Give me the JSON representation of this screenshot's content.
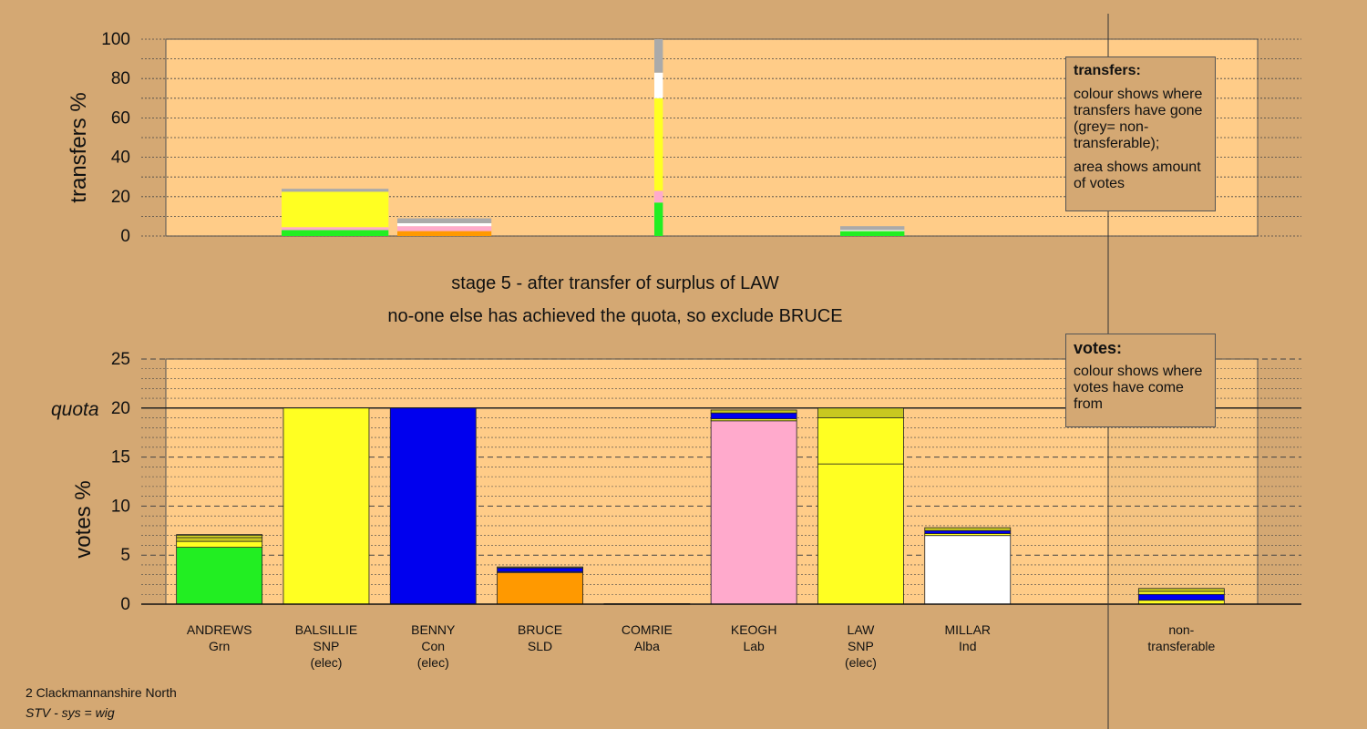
{
  "headings": {
    "line1": "stage 5 - after transfer of surplus of LAW",
    "line2": "no-one else has achieved the quota, so exclude BRUCE"
  },
  "legend_transfers": {
    "title": "transfers:",
    "text1": "colour shows where transfers have gone (grey= non-transferable);",
    "text2": "area shows amount of votes"
  },
  "legend_votes": {
    "title": "votes:",
    "text1": "colour shows where votes have come from"
  },
  "footer": {
    "ward": "2 Clackmannanshire North",
    "system": "STV - sys = wig"
  },
  "chart_data": [
    {
      "type": "bar",
      "ylabel": "transfers %",
      "ylim": [
        0,
        100
      ],
      "yticks": [
        0,
        20,
        40,
        60,
        80,
        100
      ],
      "grid": true,
      "stack_order": [
        "green",
        "pink",
        "yellow",
        "white",
        "grey"
      ],
      "segment_colors": {
        "green": "#22ee22",
        "pink": "#ffaacc",
        "yellow": "#ffff22",
        "white": "#ffffff",
        "grey": "#aaaaaa",
        "orange": "#ff9900"
      },
      "columns": [
        {
          "candidate": "BALSILLIE",
          "width_frac": 1.0,
          "segments": [
            {
              "color": "green",
              "value": 3
            },
            {
              "color": "pink",
              "value": 1.5
            },
            {
              "color": "yellow",
              "value": 18
            },
            {
              "color": "grey",
              "value": 1.5
            }
          ]
        },
        {
          "candidate": "BENNY",
          "width_frac": 0.88,
          "segments": [
            {
              "color": "orange",
              "value": 2.5
            },
            {
              "color": "pink",
              "value": 2.5
            },
            {
              "color": "white",
              "value": 1.5
            },
            {
              "color": "grey",
              "value": 2.5
            }
          ]
        },
        {
          "candidate": "LAW",
          "width_frac": 0.08,
          "segments": [
            {
              "color": "green",
              "value": 17
            },
            {
              "color": "pink",
              "value": 6
            },
            {
              "color": "yellow",
              "value": 47
            },
            {
              "color": "white",
              "value": 13
            },
            {
              "color": "grey",
              "value": 17
            }
          ]
        },
        {
          "candidate": "MILLAR",
          "width_frac": 0.6,
          "segments": [
            {
              "color": "green",
              "value": 2.5
            },
            {
              "color": "white",
              "value": 0.5
            },
            {
              "color": "grey",
              "value": 2
            }
          ]
        }
      ]
    },
    {
      "type": "bar",
      "ylabel": "votes %",
      "ylim": [
        0,
        25
      ],
      "yticks": [
        0,
        5,
        10,
        15,
        20,
        25
      ],
      "quota": 20,
      "quota_label": "quota",
      "grid": true,
      "categories": [
        {
          "name": "ANDREWS",
          "party": "Grn",
          "note": ""
        },
        {
          "name": "BALSILLIE",
          "party": "SNP",
          "note": "(elec)"
        },
        {
          "name": "BENNY",
          "party": "Con",
          "note": "(elec)"
        },
        {
          "name": "BRUCE",
          "party": "SLD",
          "note": ""
        },
        {
          "name": "COMRIE",
          "party": "Alba",
          "note": ""
        },
        {
          "name": "KEOGH",
          "party": "Lab",
          "note": ""
        },
        {
          "name": "LAW",
          "party": "SNP",
          "note": "(elec)"
        },
        {
          "name": "MILLAR",
          "party": "Ind",
          "note": ""
        },
        {
          "name": "",
          "party": "",
          "note": ""
        },
        {
          "name": "non-",
          "party": "transferable",
          "note": ""
        }
      ],
      "stacks": [
        [
          {
            "color": "#22ee22",
            "value": 5.8
          },
          {
            "color": "#ffff22",
            "value": 0.6
          },
          {
            "color": "#c8c820",
            "value": 0.4
          },
          {
            "color": "#ffff22",
            "value": 0.2
          },
          {
            "color": "#c8c820",
            "value": 0.1
          }
        ],
        [
          {
            "color": "#ffff22",
            "value": 20
          }
        ],
        [
          {
            "color": "#0000ee",
            "value": 20
          }
        ],
        [
          {
            "color": "#ff9900",
            "value": 3.2
          },
          {
            "color": "#ffaacc",
            "value": 0.1
          },
          {
            "color": "#0000ee",
            "value": 0.4
          },
          {
            "color": "#c8c820",
            "value": 0.1
          }
        ],
        [
          {
            "color": "#22ee22",
            "value": 0.05
          }
        ],
        [
          {
            "color": "#ffaacc",
            "value": 18.7
          },
          {
            "color": "#ffff22",
            "value": 0.2
          },
          {
            "color": "#0000ee",
            "value": 0.6
          },
          {
            "color": "#c8c820",
            "value": 0.3
          }
        ],
        [
          {
            "color": "#ffff22",
            "value": 14.3
          },
          {
            "color": "#ffff22",
            "value": 4.7
          },
          {
            "color": "#c8c820",
            "value": 1.0
          }
        ],
        [
          {
            "color": "#ffffff",
            "value": 7.0
          },
          {
            "color": "#ffff22",
            "value": 0.2
          },
          {
            "color": "#0000ee",
            "value": 0.3
          },
          {
            "color": "#c8c820",
            "value": 0.3
          }
        ],
        [],
        [
          {
            "color": "#ffff22",
            "value": 0.4
          },
          {
            "color": "#0000ee",
            "value": 0.6
          },
          {
            "color": "#ffff22",
            "value": 0.3
          },
          {
            "color": "#c8c820",
            "value": 0.3
          }
        ]
      ]
    }
  ]
}
